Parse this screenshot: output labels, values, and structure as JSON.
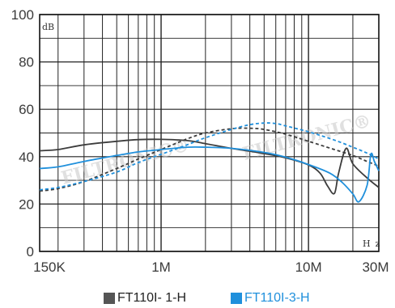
{
  "chart_data": {
    "type": "line",
    "x_scale": "log",
    "y_unit": "dB",
    "x_unit": "Hz",
    "ylim": [
      0,
      100
    ],
    "xlim": [
      150000,
      30000000
    ],
    "y_ticks": [
      "0",
      "20",
      "40",
      "60",
      "80",
      "100"
    ],
    "x_ticks": [
      {
        "label": "150K",
        "value": 150000
      },
      {
        "label": "1M",
        "value": 1000000
      },
      {
        "label": "10M",
        "value": 10000000
      },
      {
        "label": "30M",
        "value": 30000000
      }
    ],
    "grid": true,
    "watermark": "FILTRONIC®",
    "legend_position": "bottom",
    "series": [
      {
        "name": "FT110I- 1-H",
        "color": "#3c3c3c",
        "style": "solid",
        "x": [
          150000,
          200000,
          300000,
          500000,
          700000,
          1000000,
          1500000,
          2000000,
          3000000,
          5000000,
          7000000,
          10000000,
          12000000,
          13500000,
          15000000,
          16000000,
          18000000,
          20000000,
          25000000,
          30000000
        ],
        "y": [
          42.5,
          43,
          45,
          46.5,
          47.2,
          47.3,
          46.8,
          45.5,
          43.5,
          41.3,
          39.5,
          36.5,
          33,
          27.5,
          24.5,
          33,
          43.5,
          37,
          31,
          27
        ]
      },
      {
        "name": "FT110I- 1-H",
        "color": "#3c3c3c",
        "style": "dashed",
        "x": [
          150000,
          200000,
          300000,
          500000,
          700000,
          1000000,
          1500000,
          2000000,
          3000000,
          4000000,
          5000000,
          7000000,
          10000000,
          15000000,
          20000000,
          25000000,
          30000000
        ],
        "y": [
          25.5,
          26.5,
          29.5,
          35,
          39,
          43,
          47.5,
          50,
          51.8,
          52,
          51.5,
          49.5,
          46.5,
          43,
          40.5,
          38,
          36
        ]
      },
      {
        "name": "FT110I-3-H",
        "color": "#2090dc",
        "style": "solid",
        "x": [
          150000,
          200000,
          300000,
          500000,
          700000,
          1000000,
          1500000,
          2000000,
          3000000,
          5000000,
          7000000,
          10000000,
          14000000,
          17000000,
          20000000,
          22000000,
          25000000,
          26500000,
          28000000,
          30000000
        ],
        "y": [
          35,
          35.7,
          38,
          40.5,
          42,
          43,
          44,
          44,
          43.5,
          41.8,
          39.8,
          36.7,
          33,
          29,
          24.3,
          21,
          28,
          41,
          38,
          34
        ]
      },
      {
        "name": "FT110I-3-H",
        "color": "#2090dc",
        "style": "dashed",
        "x": [
          150000,
          200000,
          300000,
          500000,
          700000,
          1000000,
          1500000,
          2000000,
          3000000,
          4000000,
          5000000,
          6000000,
          7000000,
          10000000,
          15000000,
          20000000,
          25000000,
          30000000
        ],
        "y": [
          26,
          27,
          29.5,
          33.5,
          37.5,
          41,
          45,
          48,
          51.5,
          53.5,
          54.2,
          54,
          53,
          50.5,
          47,
          44,
          41.5,
          39
        ]
      }
    ],
    "legend": [
      {
        "label": "FT110I- 1-H",
        "color": "#555555"
      },
      {
        "label": "FT110I-3-H",
        "color": "#2090dc"
      }
    ]
  }
}
